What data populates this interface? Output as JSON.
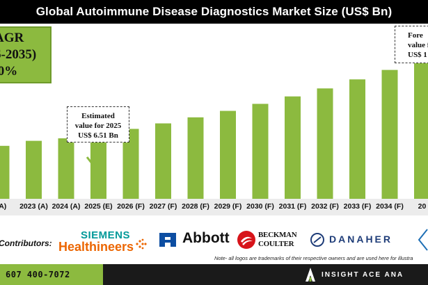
{
  "title": "Global Autoimmune Disease Diagnostics Market Size (US$ Bn)",
  "cagr": {
    "line1": "AGR",
    "line2": "6-2035)",
    "line3": ".0%"
  },
  "callouts": {
    "estimated": {
      "line1": "Estimated",
      "line2": "value for 2025",
      "line3": "US$ 6.51 Bn"
    },
    "forecast": {
      "line1": "Fore",
      "line2": "value f",
      "line3": "US$ 1"
    }
  },
  "chart_data": {
    "type": "bar",
    "title": "Global Autoimmune Disease Diagnostics Market Size (US$ Bn)",
    "categories": [
      "(A)",
      "2023 (A)",
      "2024 (A)",
      "2025 (E)",
      "2026 (F)",
      "2027 (F)",
      "2028 (F)",
      "2029 (F)",
      "2030 (F)",
      "2031 (F)",
      "2032 (F)",
      "2033 (F)",
      "2034 (F)",
      "20"
    ],
    "values": [
      5.3,
      5.8,
      6.05,
      6.51,
      7.0,
      7.55,
      8.15,
      8.8,
      9.5,
      10.25,
      11.05,
      11.95,
      12.9,
      14.3
    ],
    "ylim": [
      0,
      16
    ],
    "bar_color": "#8cba3f",
    "grid": false,
    "legend": "none"
  },
  "contributors": {
    "label": "Contributors:",
    "siemens_top": "SIEMENS",
    "siemens_bottom": "Healthineers",
    "abbott": "Abbott",
    "beckman_top": "BECKMAN",
    "beckman_bottom": "COULTER",
    "danaher": "DANAHER",
    "note": "Note- all logos are trademarks of their respective owners and are used here for illustra"
  },
  "footer": {
    "phone": "607 400-7072",
    "brand": "INSIGHT ACE ANA"
  },
  "colors": {
    "bar": "#8cba3f",
    "siemens": "#009999",
    "siemens_orange": "#ec6602",
    "abbott": "#0d4ea2",
    "beckman": "#d7141a",
    "danaher": "#1e3c78"
  }
}
